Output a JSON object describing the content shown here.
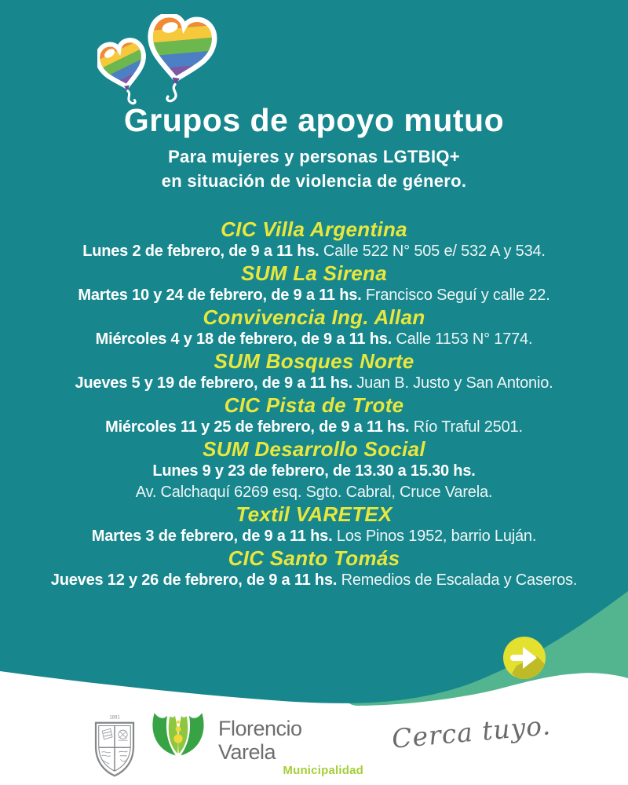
{
  "poster": {
    "title": "Grupos de apoyo mutuo",
    "subtitle_line1": "Para mujeres y personas LGTBIQ+",
    "subtitle_line2": "en situación de violencia de género.",
    "groups": [
      {
        "name": "CIC Villa Argentina",
        "schedule": "Lunes 2 de febrero, de 9 a 11 hs.",
        "address": "Calle 522 N° 505 e/ 532 A y 534.",
        "stacked": false
      },
      {
        "name": "SUM La Sirena",
        "schedule": "Martes 10 y 24 de febrero, de 9 a 11 hs.",
        "address": "Francisco Seguí y calle 22.",
        "stacked": false
      },
      {
        "name": "Convivencia Ing. Allan",
        "schedule": "Miércoles 4 y 18 de febrero, de 9 a 11 hs.",
        "address": "Calle 1153 N° 1774.",
        "stacked": false
      },
      {
        "name": "SUM Bosques Norte",
        "schedule": "Jueves 5 y 19 de febrero, de 9 a 11 hs.",
        "address": "Juan B. Justo y San Antonio.",
        "stacked": false
      },
      {
        "name": "CIC Pista de Trote",
        "schedule": "Miércoles 11 y 25 de febrero, de 9 a 11 hs.",
        "address": "Río Traful 2501.",
        "stacked": false
      },
      {
        "name": "SUM Desarrollo Social",
        "schedule": "Lunes 9 y 23 de febrero, de 13.30 a 15.30 hs.",
        "address": "Av. Calchaquí 6269 esq. Sgto. Cabral, Cruce Varela.",
        "stacked": true
      },
      {
        "name": "Textil VARETEX",
        "schedule": "Martes 3 de febrero, de 9 a 11 hs.",
        "address": "Los Pinos 1952, barrio Luján.",
        "stacked": false
      },
      {
        "name": "CIC Santo Tomás",
        "schedule": "Jueves 12 y 26 de febrero, de 9 a 11 hs.",
        "address": "Remedios de Escalada y Caseros.",
        "stacked": false
      }
    ],
    "footer": {
      "shield_year": "1891",
      "brand_name": "Florencio Varela",
      "brand_sub": "Municipalidad",
      "tagline": "Cerca tuyo."
    },
    "icons": {
      "hearts": "rainbow-heart-balloons-icon",
      "button": "arrow-right-icon",
      "shield": "city-crest-icon",
      "leaf": "leaf-flower-logo-icon"
    },
    "colors": {
      "background_teal": "#17868d",
      "wave_green": "#53b590",
      "heading_yellow": "#eae73c",
      "button_yellow": "#e3e02f",
      "button_shadow": "#b9b424",
      "brand_green": "#a6ce39",
      "brand_gray": "#6d6e70"
    }
  }
}
